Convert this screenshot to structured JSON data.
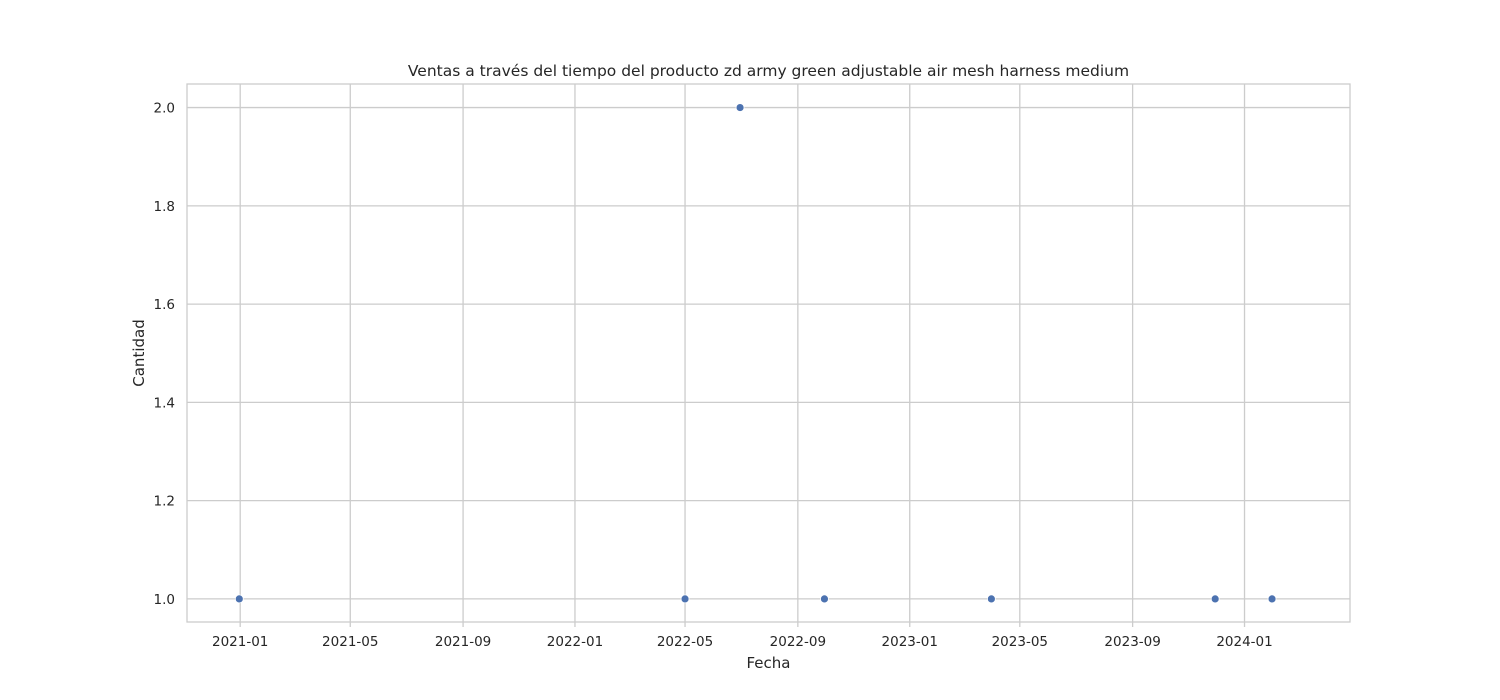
{
  "chart_data": {
    "type": "scatter",
    "title": "Ventas a través del tiempo del producto zd army green adjustable air mesh harness medium",
    "xlabel": "Fecha",
    "ylabel": "Cantidad",
    "x_ticks": [
      "2021-01",
      "2021-05",
      "2021-09",
      "2022-01",
      "2022-05",
      "2022-09",
      "2023-01",
      "2023-05",
      "2023-09",
      "2024-01"
    ],
    "y_ticks": [
      "1.0",
      "1.2",
      "1.4",
      "1.6",
      "1.8",
      "2.0"
    ],
    "xlim": [
      "2020-11-04",
      "2024-04-25"
    ],
    "ylim": [
      0.953,
      2.048
    ],
    "grid": true,
    "marker_color": "#4c72b0",
    "points": [
      {
        "x": "2020-12-31",
        "y": 1
      },
      {
        "x": "2022-05-01",
        "y": 1
      },
      {
        "x": "2022-06-30",
        "y": 2
      },
      {
        "x": "2022-09-30",
        "y": 1
      },
      {
        "x": "2023-03-31",
        "y": 1
      },
      {
        "x": "2023-11-30",
        "y": 1
      },
      {
        "x": "2024-01-31",
        "y": 1
      }
    ]
  }
}
